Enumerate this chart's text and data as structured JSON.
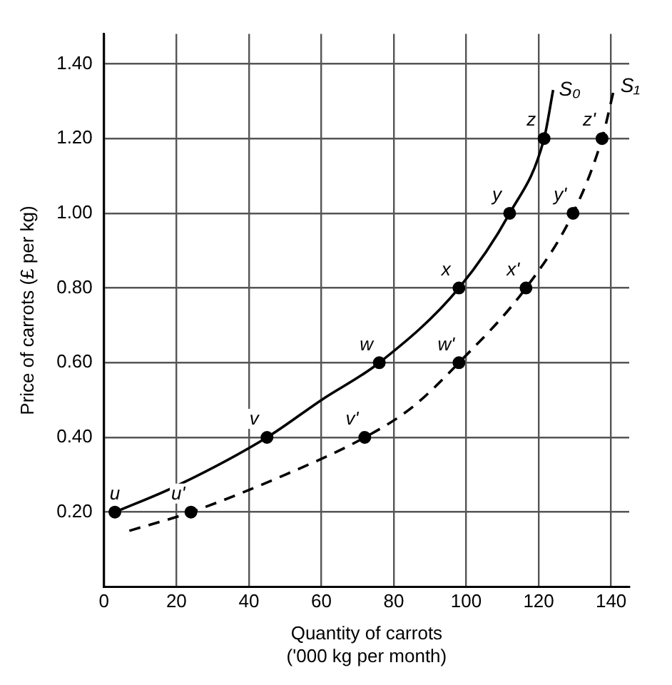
{
  "chart_data": {
    "type": "line",
    "xlabel": "Quantity of carrots\n('000 kg per month)",
    "ylabel": "Price of carrots (£ per kg)",
    "xlim": [
      0,
      145
    ],
    "ylim": [
      0,
      1.48
    ],
    "xticks": [
      0,
      20,
      40,
      60,
      80,
      100,
      120,
      140
    ],
    "yticks": [
      {
        "value": 0.2,
        "label": "0.20"
      },
      {
        "value": 0.4,
        "label": "0.40"
      },
      {
        "value": 0.6,
        "label": "0.60"
      },
      {
        "value": 0.8,
        "label": "0.80"
      },
      {
        "value": 1.0,
        "label": "1.00"
      },
      {
        "value": 1.2,
        "label": "1.20"
      },
      {
        "value": 1.4,
        "label": "1.40"
      }
    ],
    "grid": true,
    "legend": false,
    "series": [
      {
        "name": "S₀",
        "type": "line",
        "color": "#000000",
        "line_style": "solid",
        "marker": "none",
        "x": [
          3,
          20,
          45,
          60,
          76,
          98,
          112,
          121.5,
          124
        ],
        "values": [
          0.2,
          0.27,
          0.4,
          0.5,
          0.6,
          0.8,
          1.0,
          1.2,
          1.33
        ]
      },
      {
        "name": "S₁",
        "type": "line",
        "color": "#000000",
        "line_style": "dashed",
        "marker": "none",
        "x": [
          7,
          24,
          50,
          72,
          85,
          98,
          116.5,
          129.5,
          137.5,
          141
        ],
        "values": [
          0.15,
          0.2,
          0.3,
          0.4,
          0.48,
          0.6,
          0.8,
          1.0,
          1.2,
          1.34
        ]
      },
      {
        "type": "scatter",
        "color": "#000000",
        "marker": "circle",
        "x": [
          3,
          45,
          76,
          98,
          112,
          121.5
        ],
        "values": [
          0.2,
          0.4,
          0.6,
          0.8,
          1.0,
          1.2
        ]
      },
      {
        "type": "scatter",
        "color": "#000000",
        "marker": "circle",
        "x": [
          24,
          72,
          98,
          116.5,
          129.5,
          137.5
        ],
        "values": [
          0.2,
          0.4,
          0.6,
          0.8,
          1.0,
          1.2
        ]
      }
    ],
    "annotations": [
      {
        "text": "u",
        "x": 3,
        "y": 0.2
      },
      {
        "text": "v",
        "x": 45,
        "y": 0.4
      },
      {
        "text": "w",
        "x": 76,
        "y": 0.6
      },
      {
        "text": "x",
        "x": 98,
        "y": 0.8
      },
      {
        "text": "y",
        "x": 112,
        "y": 1.0
      },
      {
        "text": "z",
        "x": 121.5,
        "y": 1.2
      },
      {
        "text": "u'",
        "x": 24,
        "y": 0.2
      },
      {
        "text": "v'",
        "x": 72,
        "y": 0.4
      },
      {
        "text": "w'",
        "x": 98,
        "y": 0.6
      },
      {
        "text": "x'",
        "x": 116.5,
        "y": 0.8
      },
      {
        "text": "y'",
        "x": 129.5,
        "y": 1.0
      },
      {
        "text": "z'",
        "x": 137.5,
        "y": 1.2
      }
    ]
  }
}
